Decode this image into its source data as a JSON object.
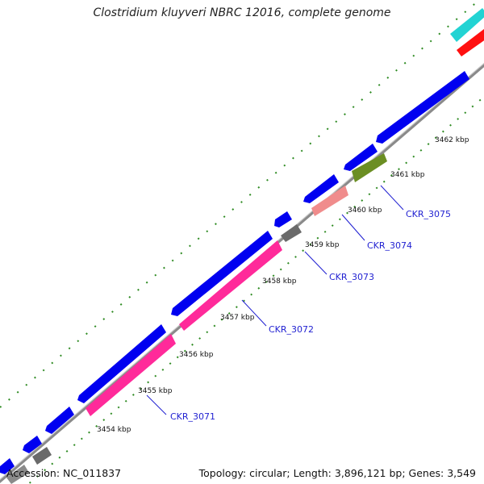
{
  "title": "Clostridium kluyveri NBRC 12016, complete genome",
  "footer": {
    "accession": "Accession: NC_011837",
    "summary": "Topology: circular; Length: 3,896,121 bp; Genes: 3,549"
  },
  "colors": {
    "backbone": "#8a8a8a",
    "tick": "#2e8b22",
    "label_line": "#1f1fd1",
    "forward_gene": "#0000f0",
    "rrna": "#ff2a9a",
    "trna": "#6b8e23",
    "pseudo": "#f08c8c",
    "other": "#6a6a6a",
    "cyan": "#22d3d3",
    "red": "#ff1010"
  },
  "kbp_labels": [
    "3454 kbp",
    "3455 kbp",
    "3456 kbp",
    "3457 kbp",
    "3458 kbp",
    "3459 kbp",
    "3460 kbp",
    "3461 kbp",
    "3462 kbp"
  ],
  "gene_labels": [
    {
      "text": "CKR_3071"
    },
    {
      "text": "CKR_3072"
    },
    {
      "text": "CKR_3073"
    },
    {
      "text": "CKR_3074"
    },
    {
      "text": "CKR_3075"
    }
  ]
}
